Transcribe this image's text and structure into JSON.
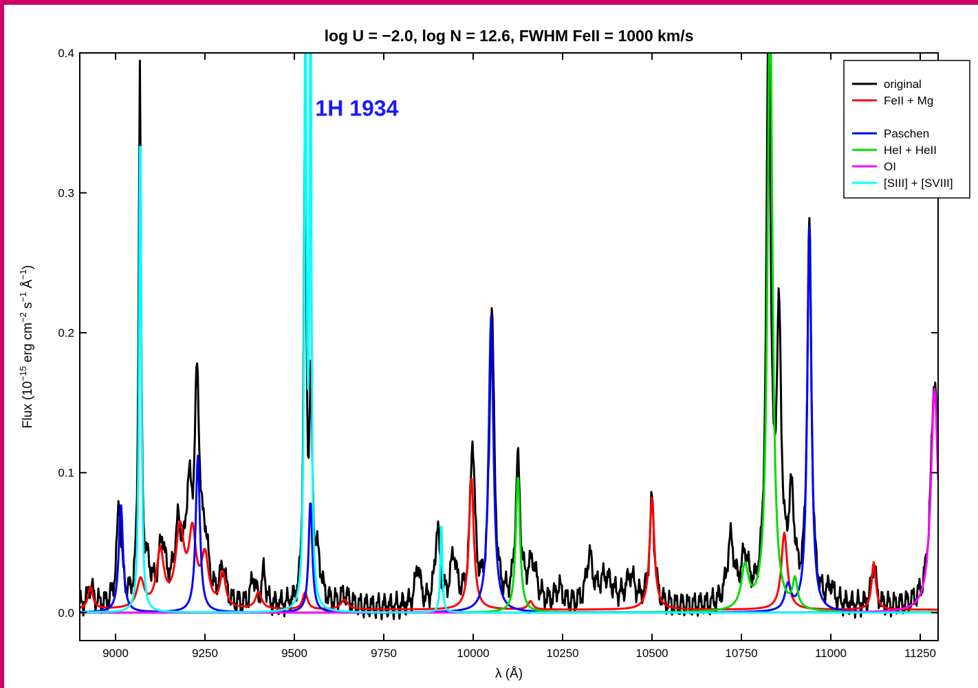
{
  "chart_data": {
    "type": "line",
    "title": "log U = −2.0, log N = 12.6, FWHM FeII = 1000 km/s",
    "xlabel": "λ (Å)",
    "ylabel_main": "Flux (10",
    "ylabel_exp1": "−15",
    "ylabel_mid1": " erg cm",
    "ylabel_exp2": "−2",
    "ylabel_mid2": " s",
    "ylabel_exp3": "−1",
    "ylabel_mid3": " Å",
    "ylabel_exp4": "−1",
    "ylabel_end": ")",
    "xlim": [
      8900,
      11300
    ],
    "ylim": [
      -0.02,
      0.4
    ],
    "xticks": [
      9000,
      9250,
      9500,
      9750,
      10000,
      10250,
      10500,
      10750,
      11000,
      11250
    ],
    "yticks": [
      0.0,
      0.1,
      0.2,
      0.3,
      0.4
    ],
    "xtick_labels": [
      "9000",
      "9250",
      "9500",
      "9750",
      "10000",
      "10250",
      "10500",
      "10750",
      "11000",
      "11250"
    ],
    "ytick_labels": [
      "0.0",
      "0.1",
      "0.2",
      "0.3",
      "0.4"
    ],
    "annotation": {
      "text": "1H 1934",
      "x": 9770,
      "y": 0.355,
      "color": "#1a1aff"
    },
    "legend_position": "top-right",
    "legend": [
      {
        "name": "original",
        "color": "#000000"
      },
      {
        "name": "FeII + Mg",
        "color": "#ff0000"
      },
      {
        "name": "",
        "color": ""
      },
      {
        "name": "Paschen",
        "color": "#0000ff"
      },
      {
        "name": "HeI + HeII",
        "color": "#00dd00"
      },
      {
        "name": "OI",
        "color": "#ff00ff"
      },
      {
        "name": "[SIII] + [SVIII]",
        "color": "#00ffff"
      }
    ],
    "series": [
      {
        "name": "original",
        "color": "#000000",
        "continuum": 0.003,
        "peaks": [
          [
            8930,
            0.014,
            10
          ],
          [
            9010,
            0.072,
            8
          ],
          [
            9068,
            0.38,
            4
          ],
          [
            9090,
            0.02,
            12
          ],
          [
            9130,
            0.042,
            12
          ],
          [
            9175,
            0.05,
            12
          ],
          [
            9205,
            0.07,
            10
          ],
          [
            9228,
            0.15,
            8
          ],
          [
            9250,
            0.04,
            12
          ],
          [
            9300,
            0.025,
            10
          ],
          [
            9385,
            0.02,
            8
          ],
          [
            9415,
            0.025,
            6
          ],
          [
            9530,
            0.36,
            4
          ],
          [
            9546,
            0.14,
            5
          ],
          [
            9565,
            0.03,
            12
          ],
          [
            9640,
            0.008,
            15
          ],
          [
            9845,
            0.03,
            8
          ],
          [
            9900,
            0.055,
            8
          ],
          [
            9945,
            0.035,
            10
          ],
          [
            9998,
            0.115,
            8
          ],
          [
            10052,
            0.21,
            8
          ],
          [
            10125,
            0.1,
            8
          ],
          [
            10165,
            0.03,
            15
          ],
          [
            10240,
            0.012,
            12
          ],
          [
            10325,
            0.033,
            10
          ],
          [
            10370,
            0.02,
            25
          ],
          [
            10440,
            0.02,
            15
          ],
          [
            10500,
            0.075,
            8
          ],
          [
            10720,
            0.045,
            12
          ],
          [
            10760,
            0.032,
            12
          ],
          [
            10826,
            0.42,
            7
          ],
          [
            10855,
            0.19,
            8
          ],
          [
            10890,
            0.07,
            10
          ],
          [
            10940,
            0.27,
            7
          ],
          [
            11000,
            0.012,
            10
          ],
          [
            11120,
            0.032,
            7
          ],
          [
            11290,
            0.165,
            12
          ]
        ]
      },
      {
        "name": "FeII + Mg",
        "color": "#ff0000",
        "continuum": 0.002,
        "peaks": [
          [
            8930,
            0.016,
            8
          ],
          [
            9070,
            0.02,
            12
          ],
          [
            9125,
            0.04,
            12
          ],
          [
            9180,
            0.055,
            14
          ],
          [
            9215,
            0.05,
            12
          ],
          [
            9250,
            0.035,
            12
          ],
          [
            9300,
            0.024,
            9
          ],
          [
            9400,
            0.012,
            10
          ],
          [
            9530,
            0.012,
            8
          ],
          [
            9640,
            0.007,
            12
          ],
          [
            9995,
            0.095,
            8
          ],
          [
            10160,
            0.006,
            8
          ],
          [
            10500,
            0.08,
            8
          ],
          [
            10870,
            0.055,
            10
          ],
          [
            11120,
            0.034,
            7
          ]
        ]
      },
      {
        "name": "Paschen",
        "color": "#0000ff",
        "continuum": 0.0,
        "peaks": [
          [
            9015,
            0.078,
            7
          ],
          [
            9230,
            0.112,
            7
          ],
          [
            9545,
            0.08,
            6
          ],
          [
            10050,
            0.212,
            8
          ],
          [
            10880,
            0.018,
            10
          ],
          [
            10940,
            0.275,
            7
          ]
        ]
      },
      {
        "name": "HeI + HeII",
        "color": "#00dd00",
        "continuum": 0.0,
        "peaks": [
          [
            10125,
            0.098,
            7
          ],
          [
            10830,
            0.45,
            8
          ],
          [
            10760,
            0.03,
            12
          ],
          [
            10900,
            0.02,
            8
          ]
        ]
      },
      {
        "name": "OI",
        "color": "#ff00ff",
        "continuum": 0.0,
        "peaks": [
          [
            11290,
            0.16,
            12
          ]
        ]
      },
      {
        "name": "[SIII] + [SVIII]",
        "color": "#00ffff",
        "continuum": 0.0,
        "peaks": [
          [
            9069,
            0.36,
            3.5
          ],
          [
            9531,
            0.45,
            3.5
          ],
          [
            9545,
            0.45,
            3
          ],
          [
            9911,
            0.068,
            3
          ]
        ]
      }
    ]
  }
}
